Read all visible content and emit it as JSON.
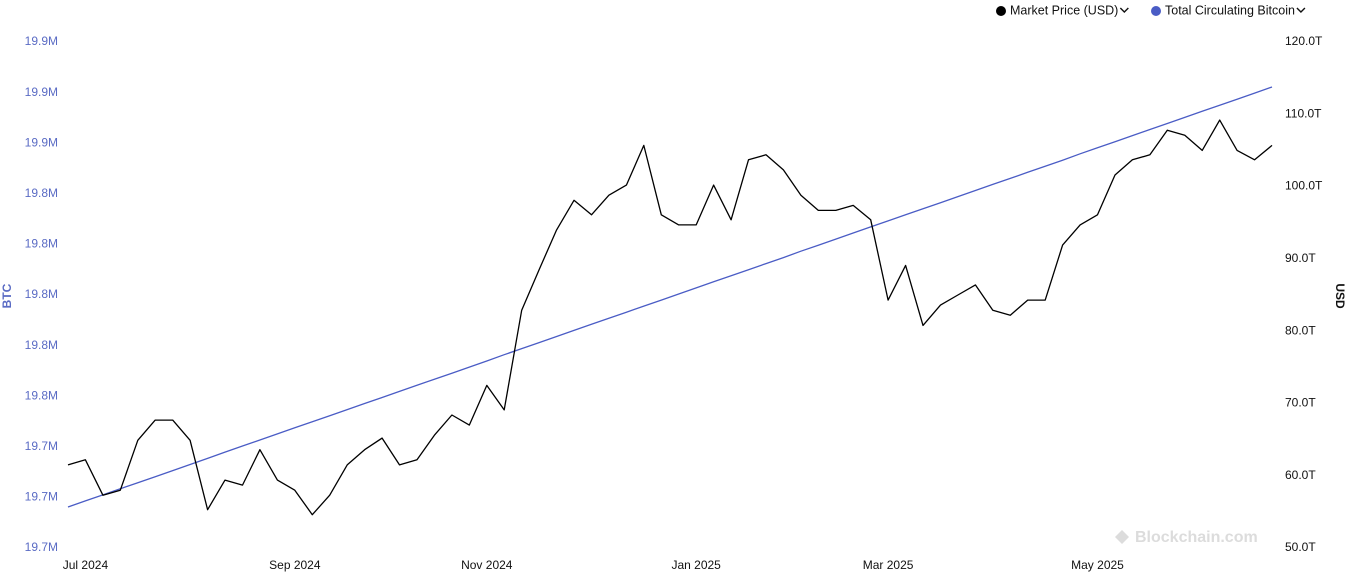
{
  "chart_data": {
    "type": "line",
    "ylabel": "BTC",
    "y2label": "USD",
    "watermark": "Blockchain.com",
    "legend": "top-right",
    "grid": false,
    "categories": [
      null,
      "Jul 2024",
      null,
      null,
      null,
      null,
      null,
      null,
      null,
      null,
      null,
      null,
      null,
      "Sep 2024",
      null,
      null,
      null,
      null,
      null,
      null,
      null,
      null,
      null,
      null,
      "Nov 2024",
      null,
      null,
      null,
      null,
      null,
      null,
      null,
      null,
      null,
      null,
      null,
      "Jan 2025",
      null,
      null,
      null,
      null,
      null,
      null,
      null,
      null,
      null,
      null,
      "Mar 2025",
      null,
      null,
      null,
      null,
      null,
      null,
      null,
      null,
      null,
      null,
      null,
      "May 2025",
      null,
      null,
      null,
      null,
      null,
      null,
      null,
      null,
      null,
      null
    ],
    "ylim": [
      19.7,
      19.9
    ],
    "yticks": [
      {
        "value": 19.7,
        "label": "19.7M"
      },
      {
        "value": 19.72,
        "label": "19.7M"
      },
      {
        "value": 19.74,
        "label": "19.7M"
      },
      {
        "value": 19.76,
        "label": "19.8M"
      },
      {
        "value": 19.78,
        "label": "19.8M"
      },
      {
        "value": 19.8,
        "label": "19.8M"
      },
      {
        "value": 19.82,
        "label": "19.8M"
      },
      {
        "value": 19.84,
        "label": "19.8M"
      },
      {
        "value": 19.86,
        "label": "19.9M"
      },
      {
        "value": 19.88,
        "label": "19.9M"
      },
      {
        "value": 19.9,
        "label": "19.9M"
      }
    ],
    "y2lim": [
      50,
      120
    ],
    "y2ticks": [
      {
        "value": 50,
        "label": "50.0T"
      },
      {
        "value": 60,
        "label": "60.0T"
      },
      {
        "value": 70,
        "label": "70.0T"
      },
      {
        "value": 80,
        "label": "80.0T"
      },
      {
        "value": 90,
        "label": "90.0T"
      },
      {
        "value": 100,
        "label": "100.0T"
      },
      {
        "value": 110,
        "label": "110.0T"
      },
      {
        "value": 120,
        "label": "120.0T"
      }
    ],
    "series": [
      {
        "name": "Market Price (USD)",
        "color": "#000000",
        "axis": "y2",
        "values": [
          61.5,
          62.2,
          57.3,
          58.0,
          64.9,
          67.7,
          67.7,
          64.9,
          55.3,
          59.4,
          58.7,
          63.6,
          59.4,
          58.0,
          54.6,
          57.3,
          61.5,
          63.6,
          65.2,
          61.5,
          62.2,
          65.6,
          68.4,
          67.0,
          72.5,
          69.1,
          82.9,
          88.5,
          94.0,
          98.1,
          96.1,
          98.8,
          100.2,
          105.7,
          96.1,
          94.7,
          94.7,
          100.2,
          95.4,
          103.7,
          104.4,
          102.3,
          98.8,
          96.7,
          96.7,
          97.4,
          95.4,
          84.3,
          89.1,
          80.8,
          83.6,
          85.0,
          86.4,
          82.9,
          82.2,
          84.3,
          84.3,
          91.9,
          94.7,
          96.1,
          101.6,
          103.7,
          104.4,
          107.8,
          107.1,
          105.0,
          109.2,
          105.0,
          103.7,
          105.7
        ]
      },
      {
        "name": "Total Circulating Bitcoin",
        "color": "#4a5cc5",
        "values": [
          19.7162,
          19.7186,
          19.721,
          19.7234,
          19.7258,
          19.7282,
          19.7306,
          19.733,
          19.7354,
          19.7379,
          19.7403,
          19.7427,
          19.7451,
          19.7475,
          19.7499,
          19.7523,
          19.7547,
          19.7571,
          19.7595,
          19.7619,
          19.7643,
          19.7667,
          19.7691,
          19.7715,
          19.7739,
          19.7764,
          19.7788,
          19.7812,
          19.7836,
          19.786,
          19.7884,
          19.7908,
          19.7932,
          19.7956,
          19.798,
          19.8004,
          19.8028,
          19.8052,
          19.8076,
          19.81,
          19.8124,
          19.8148,
          19.8173,
          19.8197,
          19.8221,
          19.8245,
          19.8269,
          19.8293,
          19.8317,
          19.8341,
          19.8365,
          19.8389,
          19.8413,
          19.8437,
          19.8461,
          19.8485,
          19.8509,
          19.8533,
          19.8558,
          19.8582,
          19.8606,
          19.863,
          19.8654,
          19.8678,
          19.8702,
          19.8726,
          19.875,
          19.8774,
          19.8798,
          19.8822
        ]
      }
    ]
  }
}
